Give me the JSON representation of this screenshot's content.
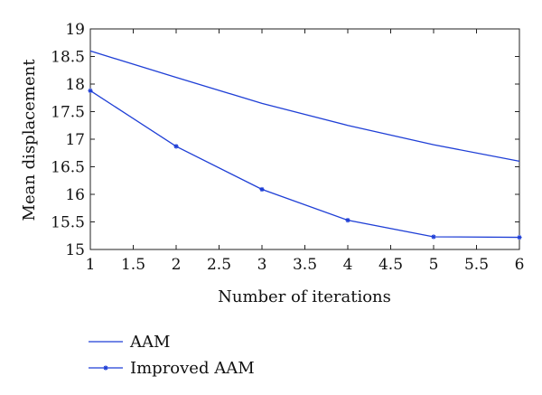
{
  "chart_data": {
    "type": "line",
    "title": "",
    "xlabel": "Number of iterations",
    "ylabel": "Mean displacement",
    "xlim": [
      1,
      6
    ],
    "ylim": [
      15,
      19
    ],
    "x_ticks": [
      "1",
      "1.5",
      "2",
      "2.5",
      "3",
      "3.5",
      "4",
      "4.5",
      "5",
      "5.5",
      "6"
    ],
    "y_ticks": [
      "15",
      "15.5",
      "16",
      "16.5",
      "17",
      "17.5",
      "18",
      "18.5",
      "19"
    ],
    "grid": false,
    "legend_position": "bottom-left, below plot",
    "x": [
      1,
      2,
      3,
      4,
      5,
      6
    ],
    "series": [
      {
        "name": "AAM",
        "marker": "none",
        "color": "#1f3fd6",
        "values": [
          18.6,
          18.12,
          17.65,
          17.25,
          16.9,
          16.6
        ]
      },
      {
        "name": "Improved AAM",
        "marker": "asterisk",
        "color": "#1f3fd6",
        "values": [
          17.88,
          16.87,
          16.09,
          15.53,
          15.23,
          15.22
        ]
      }
    ]
  }
}
